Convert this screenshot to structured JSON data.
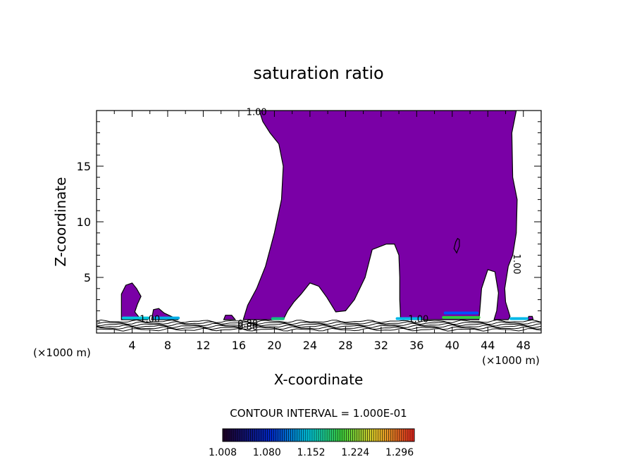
{
  "chart_data": {
    "type": "contour",
    "title": "saturation ratio",
    "xlabel": "X-coordinate",
    "ylabel": "Z-coordinate",
    "x_unit_left": "(×1000 m)",
    "x_unit_right": "(×1000 m)",
    "xlim": [
      0,
      50
    ],
    "ylim": [
      0,
      20
    ],
    "x_ticks": [
      4,
      8,
      12,
      16,
      20,
      24,
      28,
      32,
      36,
      40,
      44,
      48
    ],
    "y_ticks": [
      5,
      10,
      15
    ],
    "contour_interval_text": "CONTOUR INTERVAL = 1.000E-01",
    "colorbar": {
      "tick_labels": [
        "1.008",
        "1.080",
        "1.152",
        "1.224",
        "1.296"
      ],
      "range": [
        1.008,
        1.32
      ]
    },
    "fill_color": "#7a00a6",
    "contour_labels": [
      {
        "text": "1.00",
        "x": 18.0,
        "y": 19.9
      },
      {
        "text": "1.00",
        "x": 6.0,
        "y": 1.3
      },
      {
        "text": "0.80",
        "x": 17.0,
        "y": 0.6
      },
      {
        "text": "0.80",
        "x": 17.0,
        "y": 0.9
      },
      {
        "text": "1.00",
        "x": 36.2,
        "y": 1.3
      },
      {
        "text": "1.00",
        "x": 47.3,
        "y": 6.2
      }
    ],
    "saturated_region": [
      [
        18.3,
        20
      ],
      [
        47.2,
        20
      ],
      [
        46.7,
        18
      ],
      [
        46.8,
        14
      ],
      [
        47.3,
        12
      ],
      [
        47.2,
        9
      ],
      [
        46.8,
        7
      ],
      [
        46.3,
        6
      ],
      [
        45.9,
        4
      ],
      [
        46.0,
        2.8
      ],
      [
        46.5,
        1.5
      ],
      [
        46.3,
        1.2
      ],
      [
        44.7,
        1.2
      ],
      [
        45.0,
        2.0
      ],
      [
        45.2,
        3.6
      ],
      [
        44.8,
        5.5
      ],
      [
        44.0,
        5.7
      ],
      [
        43.3,
        4.0
      ],
      [
        43.1,
        2.0
      ],
      [
        43.0,
        1.2
      ],
      [
        34.2,
        1.2
      ],
      [
        34.1,
        3.0
      ],
      [
        34.1,
        5.0
      ],
      [
        34.0,
        7.0
      ],
      [
        33.5,
        8.0
      ],
      [
        32.6,
        8.0
      ],
      [
        31.0,
        7.5
      ],
      [
        30.2,
        5.0
      ],
      [
        29.0,
        3.0
      ],
      [
        28.0,
        2.0
      ],
      [
        26.9,
        1.9
      ],
      [
        25.9,
        3.2
      ],
      [
        25.0,
        4.2
      ],
      [
        24.0,
        4.5
      ],
      [
        23.0,
        3.5
      ],
      [
        22.2,
        2.8
      ],
      [
        21.5,
        2.0
      ],
      [
        21.0,
        1.2
      ],
      [
        16.5,
        1.2
      ],
      [
        17.0,
        2.5
      ],
      [
        18.0,
        4.0
      ],
      [
        19.0,
        6.0
      ],
      [
        20.0,
        9.0
      ],
      [
        20.8,
        12.0
      ],
      [
        21.0,
        15.0
      ],
      [
        20.5,
        17.0
      ],
      [
        19.5,
        18.0
      ],
      [
        18.7,
        19.0
      ]
    ],
    "small_cells": [
      [
        [
          2.8,
          1.2
        ],
        [
          2.8,
          3.5
        ],
        [
          3.3,
          4.3
        ],
        [
          4.0,
          4.5
        ],
        [
          4.5,
          4.0
        ],
        [
          5.0,
          3.3
        ],
        [
          4.6,
          2.6
        ],
        [
          4.3,
          1.9
        ],
        [
          4.8,
          1.4
        ],
        [
          5.8,
          1.2
        ]
      ],
      [
        [
          6.2,
          1.2
        ],
        [
          6.4,
          2.1
        ],
        [
          7.0,
          2.2
        ],
        [
          7.6,
          1.8
        ],
        [
          8.4,
          1.5
        ],
        [
          9.2,
          1.2
        ]
      ],
      [
        [
          14.3,
          1.2
        ],
        [
          14.5,
          1.6
        ],
        [
          15.2,
          1.6
        ],
        [
          15.6,
          1.2
        ]
      ],
      [
        [
          40.4,
          8.2
        ],
        [
          40.6,
          8.5
        ],
        [
          40.8,
          8.4
        ],
        [
          40.8,
          7.8
        ],
        [
          40.5,
          7.2
        ],
        [
          40.2,
          7.6
        ]
      ],
      [
        [
          48.5,
          1.2
        ],
        [
          48.6,
          1.5
        ],
        [
          49.0,
          1.5
        ],
        [
          49.1,
          1.2
        ]
      ]
    ],
    "bright_patches": [
      {
        "x0": 3.0,
        "x1": 5.8,
        "y": 1.35,
        "color": "#00c8e0"
      },
      {
        "x0": 6.5,
        "x1": 9.2,
        "y": 1.35,
        "color": "#00aee8"
      },
      {
        "x0": 19.8,
        "x1": 21.0,
        "y": 1.3,
        "color": "#10c080"
      },
      {
        "x0": 33.8,
        "x1": 36.5,
        "y": 1.3,
        "color": "#00b8e8"
      },
      {
        "x0": 39.0,
        "x1": 43.0,
        "y": 1.4,
        "color": "#30d040"
      },
      {
        "x0": 39.2,
        "x1": 42.8,
        "y": 1.8,
        "color": "#0050ff"
      },
      {
        "x0": 46.6,
        "x1": 48.4,
        "y": 1.3,
        "color": "#00b8e8"
      }
    ]
  }
}
